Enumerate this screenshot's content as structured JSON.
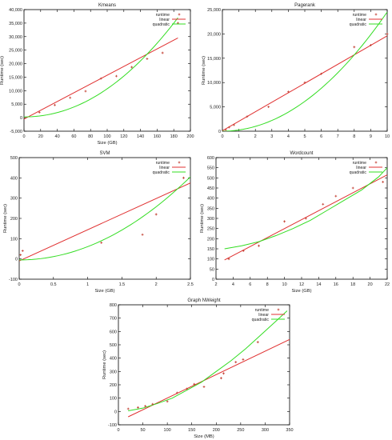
{
  "chart_data": [
    {
      "type": "scatter",
      "title": "Kmeans",
      "xlabel": "Size (GB)",
      "ylabel": "Runtime (sec)",
      "xlim": [
        0,
        200
      ],
      "ylim": [
        -5000,
        40000
      ],
      "xticks": [
        0,
        20,
        40,
        60,
        80,
        100,
        120,
        140,
        160,
        180,
        200
      ],
      "yticks": [
        -5000,
        0,
        5000,
        10000,
        15000,
        20000,
        25000,
        30000,
        35000,
        40000
      ],
      "x_tick_labels": [
        "0",
        "20",
        "40",
        "60",
        "80",
        "100",
        "120",
        "140",
        "160",
        "180",
        "200"
      ],
      "y_tick_labels": [
        "-5,000",
        "0",
        "5,000",
        "10,000",
        "15,000",
        "20,000",
        "25,000",
        "30,000",
        "35,000",
        "40,000"
      ],
      "legend": [
        "runtime",
        "linear",
        "quadratic"
      ],
      "points": [
        [
          18.5,
          2000
        ],
        [
          37,
          4700
        ],
        [
          55.5,
          7400
        ],
        [
          74,
          9800
        ],
        [
          92.5,
          14500
        ],
        [
          111,
          15400
        ],
        [
          129.5,
          18700
        ],
        [
          148,
          21800
        ],
        [
          166.5,
          24000
        ],
        [
          185,
          35000
        ]
      ],
      "linear": [
        [
          0,
          -500
        ],
        [
          185,
          29500
        ]
      ],
      "quadratic": [
        [
          0,
          300
        ],
        [
          185,
          37000
        ]
      ],
      "quad_exp": 2.05
    },
    {
      "type": "scatter",
      "title": "Pagerank",
      "xlabel": "",
      "ylabel": "Runtime (sec)",
      "xlim": [
        0,
        10
      ],
      "ylim": [
        0,
        25000
      ],
      "xticks": [
        0,
        1,
        2,
        3,
        4,
        5,
        6,
        7,
        8,
        9,
        10
      ],
      "yticks": [
        0,
        5000,
        10000,
        15000,
        20000,
        25000
      ],
      "x_tick_labels": [
        "0",
        "1",
        "2",
        "3",
        "4",
        "5",
        "6",
        "7",
        "8",
        "9",
        "10"
      ],
      "y_tick_labels": [
        "0",
        "5,000",
        "10,000",
        "15,000",
        "20,000",
        "25,000"
      ],
      "legend": [
        "runtime",
        "linear",
        "quadratic"
      ],
      "points": [
        [
          0.2,
          300
        ],
        [
          0.4,
          800
        ],
        [
          0.7,
          1300
        ],
        [
          1.5,
          3000
        ],
        [
          2.8,
          5000
        ],
        [
          4,
          8100
        ],
        [
          5,
          10000
        ],
        [
          6,
          11800
        ],
        [
          8,
          17300
        ],
        [
          9,
          17700
        ],
        [
          10,
          20000
        ]
      ],
      "linear": [
        [
          0,
          100
        ],
        [
          10,
          19600
        ]
      ],
      "quadratic": [
        [
          0,
          0
        ],
        [
          10,
          24500
        ]
      ],
      "quad_exp": 2.0
    },
    {
      "type": "scatter",
      "title": "SVM",
      "xlabel": "Size (GB)",
      "ylabel": "Runtime (sec)",
      "xlim": [
        0,
        2.5
      ],
      "ylim": [
        -100,
        500
      ],
      "xticks": [
        0,
        0.5,
        1,
        1.5,
        2,
        2.5
      ],
      "yticks": [
        -100,
        0,
        100,
        200,
        300,
        400,
        500
      ],
      "x_tick_labels": [
        "0",
        "0.5",
        "1",
        "1.5",
        "2",
        "2.5"
      ],
      "y_tick_labels": [
        "-100",
        "0",
        "100",
        "200",
        "300",
        "400",
        "500"
      ],
      "legend": [
        "runtime",
        "linear",
        "quadratic"
      ],
      "points": [
        [
          0.02,
          20
        ],
        [
          0.05,
          40
        ],
        [
          1.2,
          80
        ],
        [
          1.8,
          120
        ],
        [
          2,
          220
        ],
        [
          2.4,
          400
        ]
      ],
      "linear": [
        [
          0,
          -10
        ],
        [
          2.5,
          375
        ]
      ],
      "quadratic": [
        [
          0,
          -5
        ],
        [
          2.5,
          405
        ]
      ],
      "quad_exp": 2.0
    },
    {
      "type": "scatter",
      "title": "Wordcount",
      "xlabel": "Size (GB)",
      "ylabel": "Runtime (sec)",
      "xlim": [
        2,
        22
      ],
      "ylim": [
        0,
        600
      ],
      "xticks": [
        2,
        4,
        6,
        8,
        10,
        12,
        14,
        16,
        18,
        20,
        22
      ],
      "yticks": [
        0,
        50,
        100,
        150,
        200,
        250,
        300,
        350,
        400,
        450,
        500,
        550,
        600
      ],
      "x_tick_labels": [
        "2",
        "4",
        "6",
        "8",
        "10",
        "12",
        "14",
        "16",
        "18",
        "20",
        "22"
      ],
      "y_tick_labels": [
        "0",
        "50",
        "100",
        "150",
        "200",
        "250",
        "300",
        "350",
        "400",
        "450",
        "500",
        "550",
        "600"
      ],
      "legend": [
        "runtime",
        "linear",
        "quadratic"
      ],
      "points": [
        [
          3.5,
          100
        ],
        [
          5.2,
          140
        ],
        [
          7,
          165
        ],
        [
          10,
          285
        ],
        [
          12.5,
          300
        ],
        [
          14.5,
          370
        ],
        [
          16,
          410
        ],
        [
          18,
          450
        ],
        [
          21.5,
          480
        ]
      ],
      "linear": [
        [
          3,
          95
        ],
        [
          22,
          515
        ]
      ],
      "quadratic_pts": [
        [
          3,
          150
        ],
        [
          5,
          165
        ],
        [
          7,
          185
        ],
        [
          9,
          215
        ],
        [
          11,
          250
        ],
        [
          13,
          290
        ],
        [
          15,
          340
        ],
        [
          17,
          390
        ],
        [
          19,
          440
        ],
        [
          21,
          505
        ],
        [
          22,
          550
        ]
      ]
    },
    {
      "type": "scatter",
      "title": "Graph NWeight",
      "xlabel": "Size (MB)",
      "ylabel": "Runtime (sec)",
      "xlim": [
        0,
        350
      ],
      "ylim": [
        -100,
        800
      ],
      "xticks": [
        0,
        50,
        100,
        150,
        200,
        250,
        300,
        350
      ],
      "yticks": [
        -100,
        0,
        100,
        200,
        300,
        400,
        500,
        600,
        700,
        800
      ],
      "x_tick_labels": [
        "0",
        "50",
        "100",
        "150",
        "200",
        "250",
        "300",
        "350"
      ],
      "y_tick_labels": [
        "-100",
        "0",
        "100",
        "200",
        "300",
        "400",
        "500",
        "600",
        "700",
        "800"
      ],
      "legend": [
        "runtime",
        "linear",
        "quadratic"
      ],
      "points": [
        [
          20,
          20
        ],
        [
          40,
          30
        ],
        [
          55,
          40
        ],
        [
          70,
          55
        ],
        [
          100,
          75
        ],
        [
          120,
          140
        ],
        [
          140,
          170
        ],
        [
          155,
          205
        ],
        [
          175,
          185
        ],
        [
          210,
          250
        ],
        [
          215,
          285
        ],
        [
          240,
          370
        ],
        [
          255,
          390
        ],
        [
          285,
          520
        ]
      ],
      "linear": [
        [
          20,
          -40
        ],
        [
          350,
          540
        ]
      ],
      "quadratic_pts": [
        [
          20,
          5
        ],
        [
          50,
          25
        ],
        [
          80,
          60
        ],
        [
          110,
          100
        ],
        [
          140,
          160
        ],
        [
          170,
          220
        ],
        [
          200,
          300
        ],
        [
          230,
          380
        ],
        [
          260,
          470
        ],
        [
          290,
          570
        ],
        [
          320,
          670
        ],
        [
          345,
          755
        ]
      ]
    }
  ],
  "colors": {
    "runtime": "#c0392b",
    "linear": "#e03030",
    "quadratic": "#33dd22"
  }
}
